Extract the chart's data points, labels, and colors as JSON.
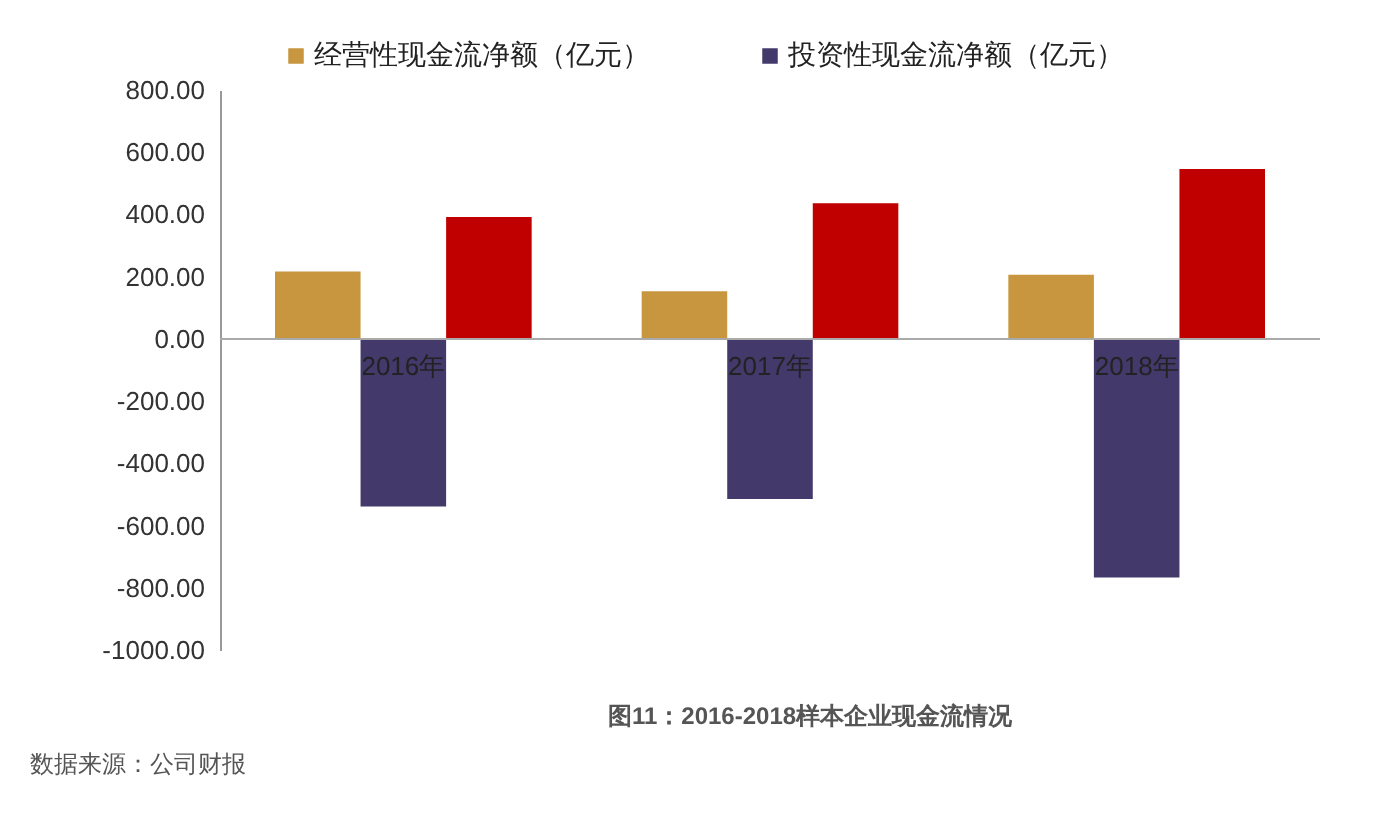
{
  "chart_data": {
    "type": "bar",
    "title": "图11：2016-2018样本企业现金流情况",
    "categories": [
      "2016年",
      "2017年",
      "2018年"
    ],
    "series": [
      {
        "name": "经营性现金流净额（亿元）",
        "color": "#c8963e",
        "values": [
          217,
          153,
          206
        ]
      },
      {
        "name": "投资性现金流净额（亿元）",
        "color": "#433a6b",
        "values": [
          -539,
          -515,
          -767
        ]
      },
      {
        "color": "#c00000",
        "values": [
          392,
          436,
          546
        ]
      }
    ],
    "ylim": [
      -1000,
      800
    ],
    "yticks": [
      {
        "value": -1000,
        "label": "-1000.00"
      },
      {
        "value": -800,
        "label": "-800.00"
      },
      {
        "value": -600,
        "label": "-600.00"
      },
      {
        "value": -400,
        "label": "-400.00"
      },
      {
        "value": -200,
        "label": "-200.00"
      },
      {
        "value": 0,
        "label": "0.00"
      },
      {
        "value": 200,
        "label": "200.00"
      },
      {
        "value": 400,
        "label": "400.00"
      },
      {
        "value": 600,
        "label": "600.00"
      },
      {
        "value": 800,
        "label": "800.00"
      }
    ],
    "grid": false,
    "legend": "top",
    "annotations": [
      "数据来源：公司财报"
    ]
  }
}
